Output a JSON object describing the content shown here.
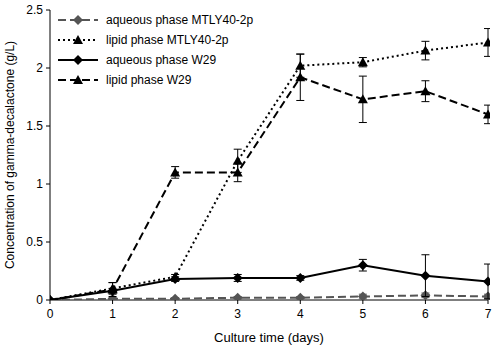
{
  "chart_data": {
    "type": "line",
    "x_label": "Culture time (days)",
    "y_label": "Concentration of gamma-decalactone (g/L)",
    "x": [
      0,
      1,
      2,
      3,
      4,
      5,
      6,
      7
    ],
    "xlim": [
      0,
      7
    ],
    "xticks": [
      0,
      1,
      2,
      3,
      4,
      5,
      6,
      7
    ],
    "ylim": [
      0,
      2.5
    ],
    "yticks": [
      0,
      0.5,
      1,
      1.5,
      2,
      2.5
    ],
    "grid": false,
    "legend": "top-left",
    "series": [
      {
        "name": "aqueous phase MTLY40-2p",
        "color": "#555555",
        "marker": "diamond",
        "line_style": "dashed",
        "values": [
          0,
          0.01,
          0.01,
          0.02,
          0.02,
          0.03,
          0.04,
          0.03
        ],
        "errors": [
          0,
          0.01,
          0.01,
          0.01,
          0.01,
          0.02,
          0.02,
          0.02
        ]
      },
      {
        "name": "lipid phase MTLY40-2p",
        "color": "#000000",
        "marker": "triangle",
        "line_style": "dotted",
        "values": [
          0,
          0.1,
          0.2,
          1.2,
          2.02,
          2.05,
          2.15,
          2.22
        ],
        "errors": [
          0,
          0.05,
          0.02,
          0.1,
          0.1,
          0.04,
          0.08,
          0.12
        ]
      },
      {
        "name": "aqueous phase W29",
        "color": "#000000",
        "marker": "diamond",
        "line_style": "solid",
        "values": [
          0,
          0.08,
          0.18,
          0.19,
          0.19,
          0.3,
          0.21,
          0.16
        ],
        "errors": [
          0,
          0.02,
          0.02,
          0.03,
          0.02,
          0.05,
          0.18,
          0.15
        ]
      },
      {
        "name": "lipid phase W29",
        "color": "#000000",
        "marker": "triangle",
        "line_style": "dashed",
        "values": [
          0,
          0.09,
          1.1,
          1.1,
          1.92,
          1.73,
          1.8,
          1.6
        ],
        "errors": [
          0,
          0.06,
          0.05,
          0.08,
          0.2,
          0.2,
          0.09,
          0.08
        ]
      }
    ]
  }
}
